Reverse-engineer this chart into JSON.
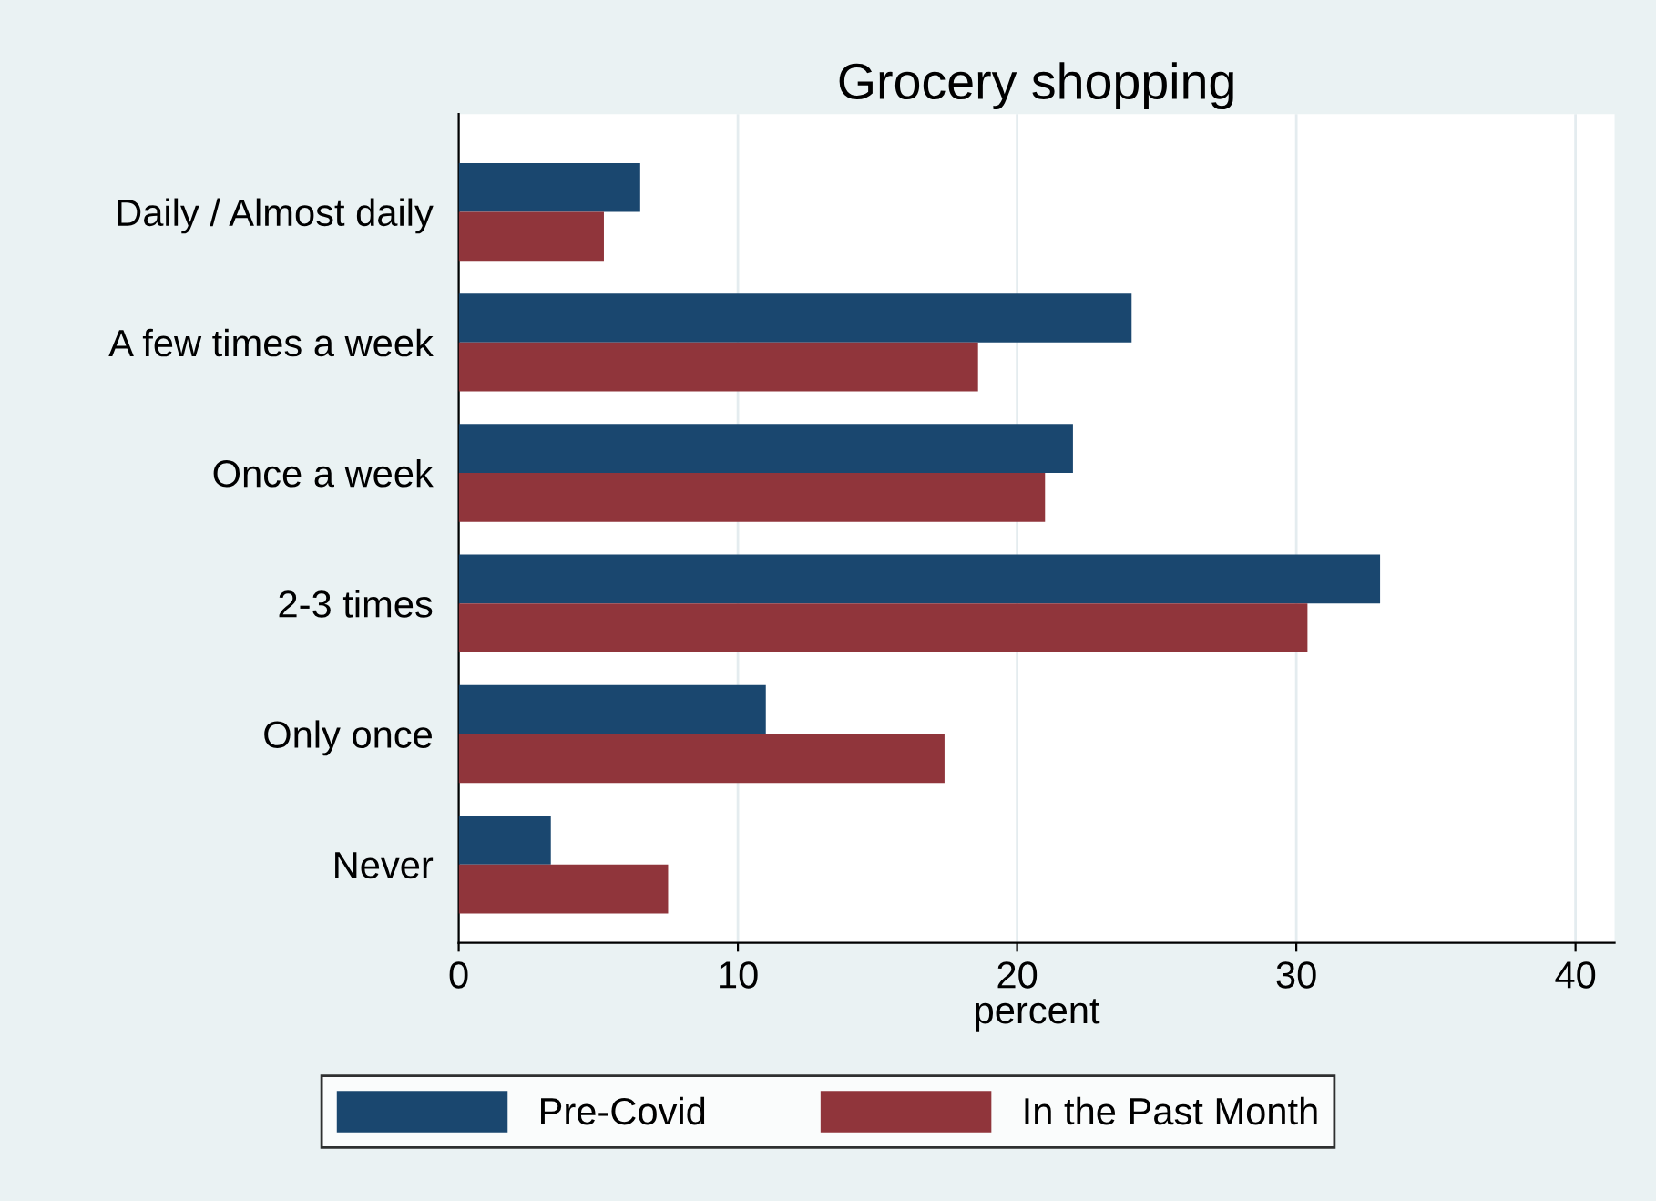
{
  "chart_data": {
    "type": "bar",
    "orientation": "horizontal",
    "title": "Grocery shopping",
    "xlabel": "percent",
    "categories": [
      "Daily / Almost daily",
      "A few times a week",
      "Once a week",
      "2-3 times",
      "Only once",
      "Never"
    ],
    "series": [
      {
        "name": "Pre-Covid",
        "color": "#1a476f",
        "values": [
          6.5,
          24.1,
          22.0,
          33.0,
          11.0,
          3.3
        ]
      },
      {
        "name": "In the Past Month",
        "color": "#90353b",
        "values": [
          5.2,
          18.6,
          21.0,
          30.4,
          17.4,
          7.5
        ]
      }
    ],
    "xlim": [
      0,
      41.4
    ],
    "xticks": [
      0,
      10,
      20,
      30,
      40
    ],
    "grid": "x",
    "legend": "bottom"
  }
}
